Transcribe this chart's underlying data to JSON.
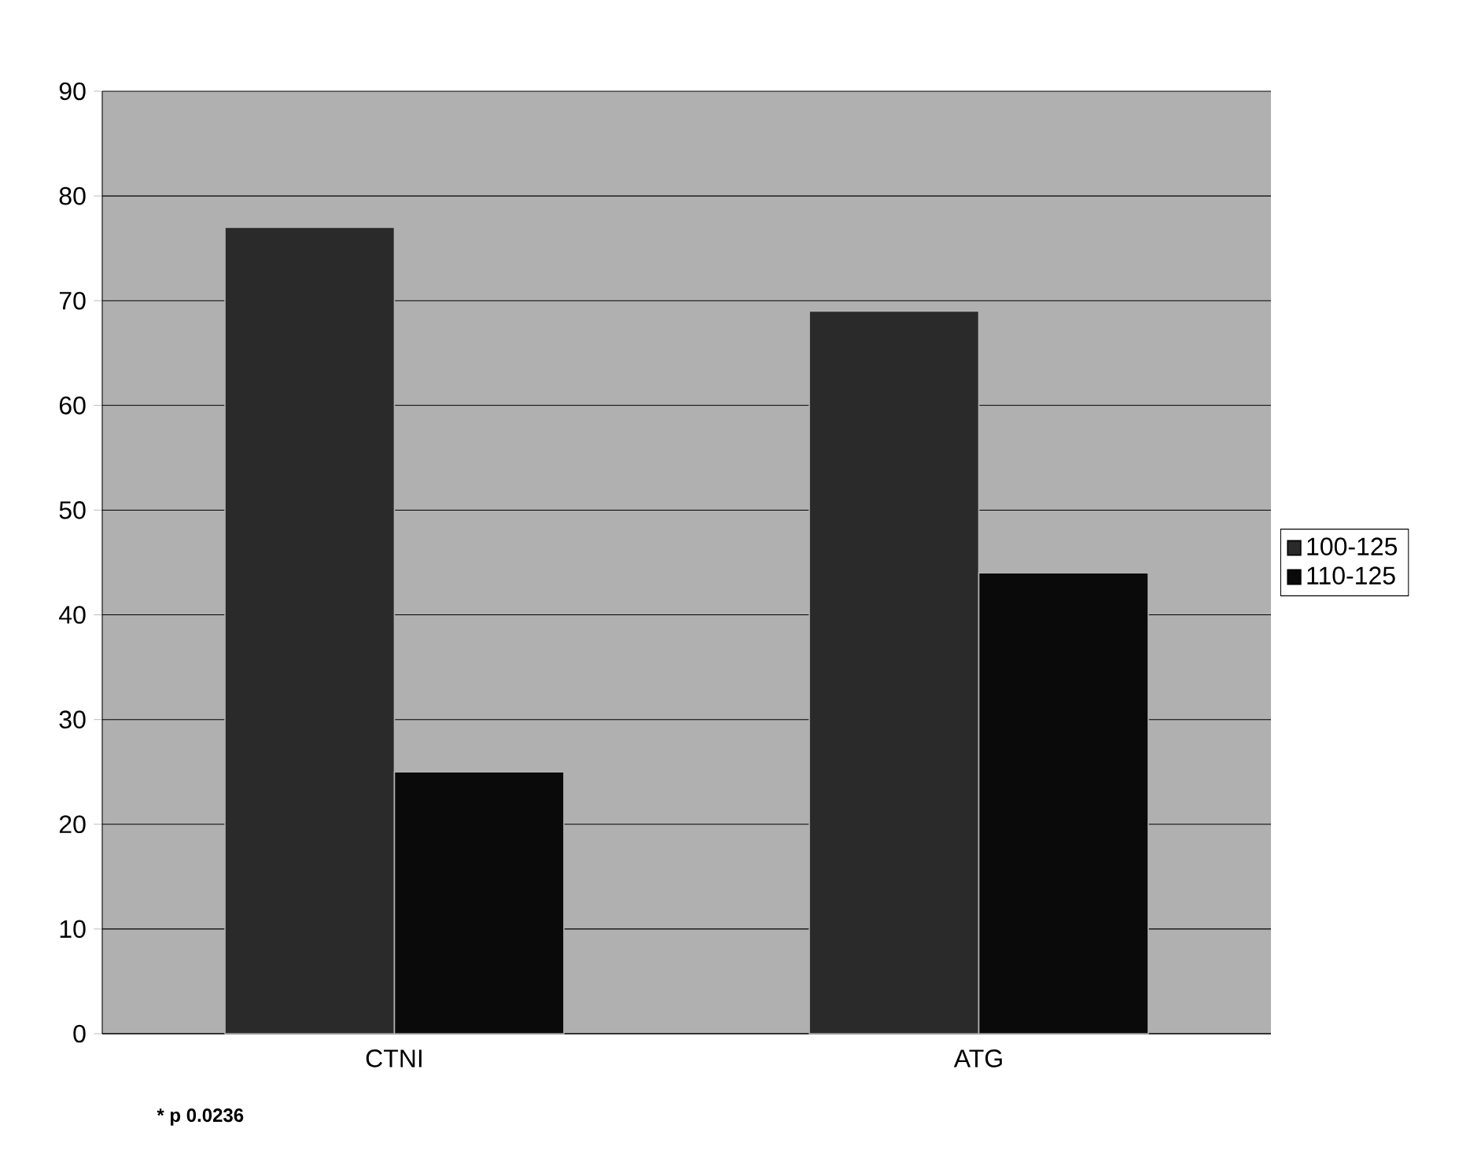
{
  "chart_data": {
    "type": "bar",
    "categories": [
      "CTNI",
      "ATG"
    ],
    "series": [
      {
        "name": "100-125",
        "color": "#2a2a2a",
        "values": [
          77,
          69
        ]
      },
      {
        "name": "110-125",
        "color": "#0a0a0a",
        "values": [
          25,
          44
        ]
      }
    ],
    "ylim": [
      0,
      90
    ],
    "yticks": [
      0,
      10,
      20,
      30,
      40,
      50,
      60,
      70,
      80,
      90
    ],
    "grid": "y",
    "legend": "right",
    "annotations": [
      "* p 0.0236"
    ]
  }
}
